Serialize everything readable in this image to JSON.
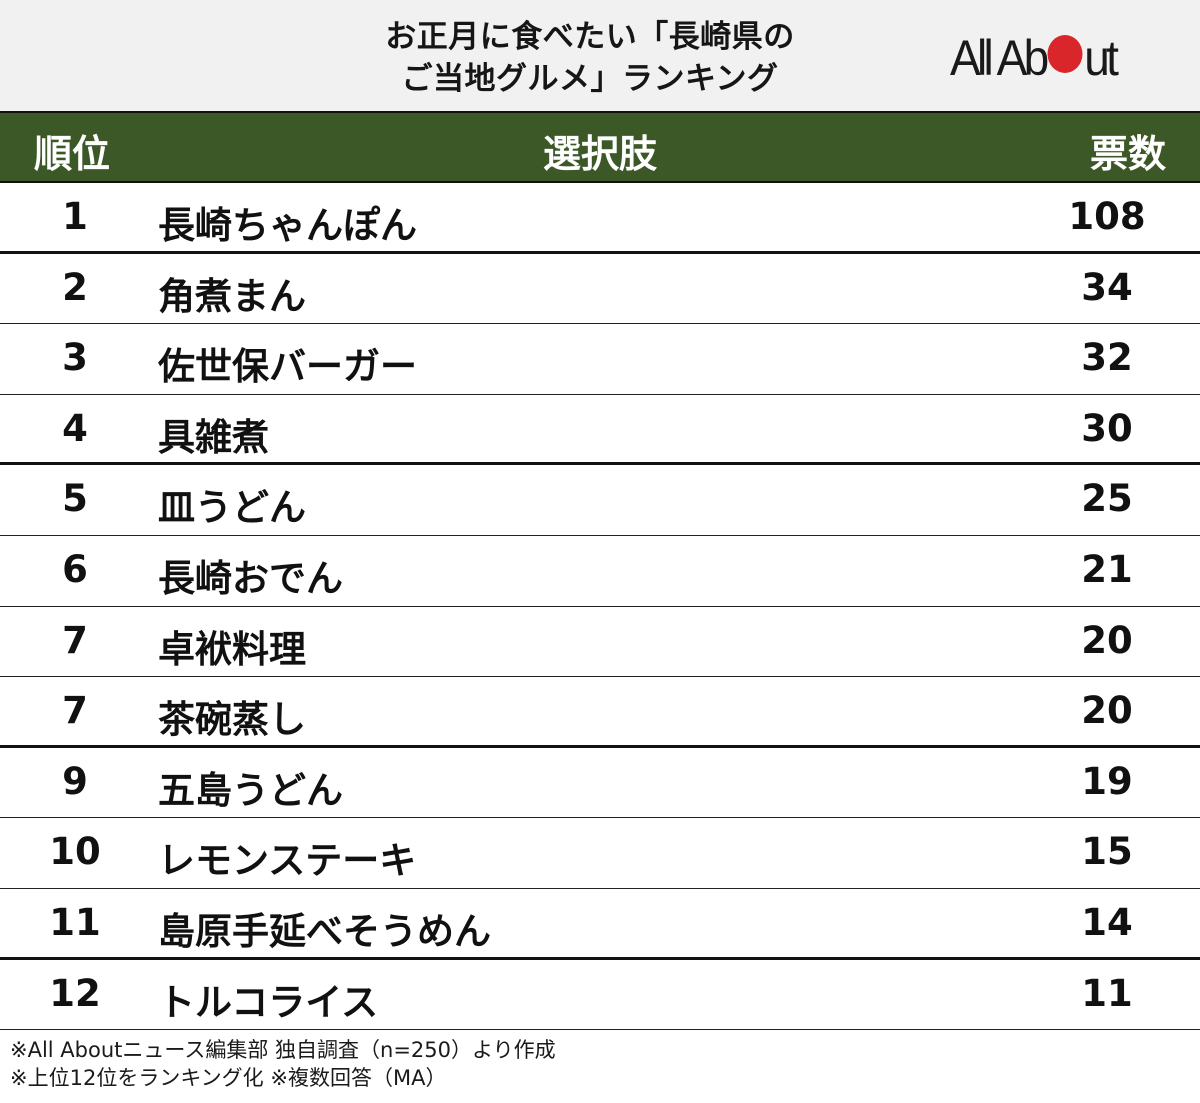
{
  "title": {
    "line1": "お正月に食べたい「長崎県の",
    "line2": "ご当地グルメ」ランキング"
  },
  "logo": {
    "left_text": "All Ab",
    "right_text": "ut",
    "dot_color": "#d9262a"
  },
  "header": {
    "rank": "順位",
    "choice": "選択肢",
    "votes": "票数",
    "bg_color": "#3b5826"
  },
  "rows": [
    {
      "rank": "1",
      "name": "長崎ちゃんぽん",
      "votes": "108"
    },
    {
      "rank": "2",
      "name": "角煮まん",
      "votes": "34"
    },
    {
      "rank": "3",
      "name": "佐世保バーガー",
      "votes": "32"
    },
    {
      "rank": "4",
      "name": "具雑煮",
      "votes": "30"
    },
    {
      "rank": "5",
      "name": "皿うどん",
      "votes": "25"
    },
    {
      "rank": "6",
      "name": "長崎おでん",
      "votes": "21"
    },
    {
      "rank": "7",
      "name": "卓袱料理",
      "votes": "20"
    },
    {
      "rank": "7",
      "name": "茶碗蒸し",
      "votes": "20"
    },
    {
      "rank": "9",
      "name": "五島うどん",
      "votes": "19"
    },
    {
      "rank": "10",
      "name": "レモンステーキ",
      "votes": "15"
    },
    {
      "rank": "11",
      "name": "島原手延べそうめん",
      "votes": "14"
    },
    {
      "rank": "12",
      "name": "トルコライス",
      "votes": "11"
    }
  ],
  "notes": {
    "line1": "※All Aboutニュース編集部 独自調査（n=250）より作成",
    "line2": "※上位12位をランキング化 ※複数回答（MA）"
  },
  "chart_data": {
    "type": "table",
    "title": "お正月に食べたい「長崎県のご当地グルメ」ランキング",
    "columns": [
      "順位",
      "選択肢",
      "票数"
    ],
    "categories": [
      "長崎ちゃんぽん",
      "角煮まん",
      "佐世保バーガー",
      "具雑煮",
      "皿うどん",
      "長崎おでん",
      "卓袱料理",
      "茶碗蒸し",
      "五島うどん",
      "レモンステーキ",
      "島原手延べそうめん",
      "トルコライス"
    ],
    "ranks": [
      1,
      2,
      3,
      4,
      5,
      6,
      7,
      7,
      9,
      10,
      11,
      12
    ],
    "values": [
      108,
      34,
      32,
      30,
      25,
      21,
      20,
      20,
      19,
      15,
      14,
      11
    ],
    "annotations": [
      "※All Aboutニュース編集部 独自調査（n=250）より作成",
      "※上位12位をランキング化 ※複数回答（MA）"
    ]
  }
}
